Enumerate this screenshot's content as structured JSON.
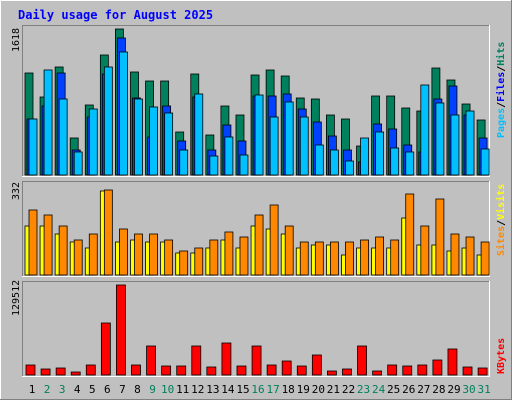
{
  "chart_data": {
    "type": "bar",
    "title": "Daily usage for August 2025",
    "days": [
      "1",
      "2",
      "3",
      "4",
      "5",
      "6",
      "7",
      "8",
      "9",
      "10",
      "11",
      "12",
      "13",
      "14",
      "15",
      "16",
      "17",
      "18",
      "19",
      "20",
      "21",
      "22",
      "23",
      "24",
      "25",
      "26",
      "27",
      "28",
      "29",
      "30",
      "31"
    ],
    "weekend_days": [
      2,
      3,
      9,
      10,
      16,
      17,
      23,
      24,
      30,
      31
    ],
    "panels": {
      "hits_files_pages": {
        "axis_max_label": "1618",
        "ymax": 1618,
        "series": [
          {
            "name": "Hits",
            "values": [
              1130,
              860,
              1200,
              410,
              780,
              1330,
              1618,
              1140,
              1040,
              1040,
              480,
              1120,
              440,
              770,
              660,
              1110,
              1160,
              1100,
              850,
              840,
              660,
              620,
              320,
              870,
              870,
              740,
              710,
              1190,
              1050,
              790,
              610
            ]
          },
          {
            "name": "Files",
            "values": [
              620,
              770,
              1130,
              280,
              640,
              1120,
              1520,
              850,
              420,
              770,
              380,
              860,
              280,
              550,
              380,
              880,
              880,
              900,
              730,
              590,
              430,
              280,
              140,
              560,
              510,
              330,
              260,
              840,
              990,
              670,
              410
            ]
          },
          {
            "name": "Pages",
            "values": [
              620,
              1160,
              840,
              260,
              730,
              1200,
              1360,
              840,
              750,
              690,
              280,
              900,
              210,
              420,
              220,
              890,
              640,
              810,
              640,
              330,
              280,
              160,
              410,
              480,
              300,
              260,
              1000,
              800,
              670,
              710,
              290
            ]
          }
        ]
      },
      "visits_sites": {
        "axis_max_label": "332",
        "ymax": 332,
        "series": [
          {
            "name": "Visits",
            "values": [
              180,
              180,
              150,
              120,
              100,
              310,
              120,
              130,
              120,
              120,
              80,
              80,
              100,
              130,
              100,
              180,
              170,
              150,
              100,
              110,
              110,
              75,
              100,
              100,
              100,
              210,
              110,
              110,
              90,
              100,
              75
            ]
          },
          {
            "name": "Sites",
            "values": [
              240,
              220,
              180,
              130,
              150,
              315,
              170,
              150,
              150,
              130,
              90,
              100,
              130,
              160,
              140,
              220,
              260,
              180,
              120,
              120,
              120,
              120,
              130,
              140,
              130,
              300,
              180,
              280,
              150,
              140,
              120
            ]
          }
        ]
      },
      "kbytes": {
        "axis_max_label": "129512",
        "ymax": 129512,
        "series": [
          {
            "name": "KBytes",
            "values": [
              14500,
              8800,
              10000,
              4300,
              14400,
              74600,
              129512,
              14300,
              42300,
              12400,
              13000,
              41700,
              11700,
              45700,
              12500,
              42000,
              14000,
              20100,
              12900,
              28500,
              6300,
              9000,
              42200,
              6000,
              14400,
              12300,
              14500,
              22300,
              37800,
              12000,
              10000
            ]
          }
        ]
      }
    },
    "right_labels": {
      "top": [
        {
          "text": "Pages",
          "color": "#00c0ff"
        },
        {
          "text": "/",
          "color": "#000000"
        },
        {
          "text": "Files",
          "color": "#0000ff"
        },
        {
          "text": "/",
          "color": "#000000"
        },
        {
          "text": "Hits",
          "color": "#008060"
        }
      ],
      "middle": [
        {
          "text": "Sites",
          "color": "#ff8800"
        },
        {
          "text": "/",
          "color": "#000000"
        },
        {
          "text": "Visits",
          "color": "#ffff00"
        }
      ],
      "bottom": [
        {
          "text": "KBytes",
          "color": "#ff0000"
        }
      ]
    },
    "colors": {
      "hits": "#00805c",
      "files": "#0040ff",
      "pages": "#00c0ff",
      "visits": "#ffff00",
      "sites": "#ff8800",
      "kbytes": "#ff0000",
      "background": "#c0c0c0",
      "title": "#0000ff",
      "weekday_label": "#000000",
      "weekend_label": "#00805c"
    }
  }
}
